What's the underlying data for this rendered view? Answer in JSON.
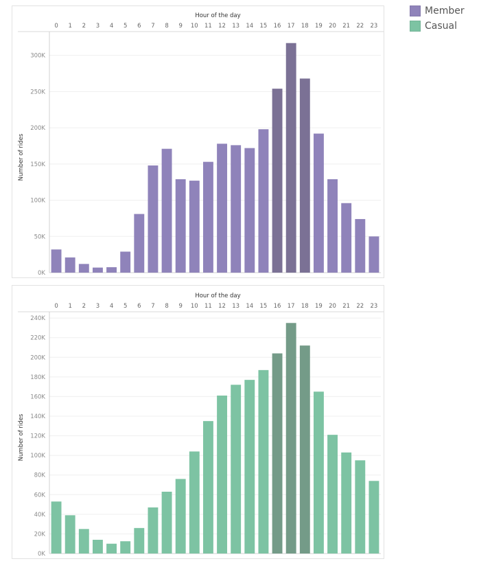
{
  "legend": {
    "items": [
      {
        "label": "Member",
        "color": "#8f83ba"
      },
      {
        "label": "Casual",
        "color": "#7dc3a3"
      }
    ]
  },
  "chart_data": [
    {
      "type": "bar",
      "title": "",
      "xlabel": "Hour of the day",
      "ylabel": "Number of rides",
      "x_axis_position": "top",
      "categories": [
        "0",
        "1",
        "2",
        "3",
        "4",
        "5",
        "6",
        "7",
        "8",
        "9",
        "10",
        "11",
        "12",
        "13",
        "14",
        "15",
        "16",
        "17",
        "18",
        "19",
        "20",
        "21",
        "22",
        "23"
      ],
      "values": [
        32000,
        21000,
        12000,
        7000,
        7500,
        29000,
        81000,
        148000,
        171000,
        129000,
        127000,
        153000,
        178000,
        176000,
        172000,
        198000,
        254000,
        317000,
        268000,
        192000,
        129000,
        96000,
        74000,
        50000
      ],
      "highlight_categories": [
        "16",
        "17",
        "18"
      ],
      "ylim": [
        0,
        330000
      ],
      "yticks": [
        0,
        50000,
        100000,
        150000,
        200000,
        250000,
        300000
      ],
      "ytick_labels": [
        "0K",
        "50K",
        "100K",
        "150K",
        "200K",
        "250K",
        "300K"
      ],
      "grid": true,
      "colors": {
        "bar": "#8f83ba",
        "highlight": "#7b7195"
      }
    },
    {
      "type": "bar",
      "title": "",
      "xlabel": "Hour of the day",
      "ylabel": "Number of rides",
      "x_axis_position": "top",
      "categories": [
        "0",
        "1",
        "2",
        "3",
        "4",
        "5",
        "6",
        "7",
        "8",
        "9",
        "10",
        "11",
        "12",
        "13",
        "14",
        "15",
        "16",
        "17",
        "18",
        "19",
        "20",
        "21",
        "22",
        "23"
      ],
      "values": [
        53000,
        39000,
        25000,
        14000,
        10000,
        12500,
        26000,
        47000,
        63000,
        76000,
        104000,
        135000,
        161000,
        172000,
        177000,
        187000,
        204000,
        235000,
        212000,
        165000,
        121000,
        103000,
        95000,
        74000
      ],
      "highlight_categories": [
        "16",
        "17",
        "18"
      ],
      "ylim": [
        0,
        245000
      ],
      "yticks": [
        0,
        20000,
        40000,
        60000,
        80000,
        100000,
        120000,
        140000,
        160000,
        180000,
        200000,
        220000,
        240000
      ],
      "ytick_labels": [
        "0K",
        "20K",
        "40K",
        "60K",
        "80K",
        "100K",
        "120K",
        "140K",
        "160K",
        "180K",
        "200K",
        "220K",
        "240K"
      ],
      "grid": true,
      "colors": {
        "bar": "#7dc3a3",
        "highlight": "#749b88"
      }
    }
  ]
}
